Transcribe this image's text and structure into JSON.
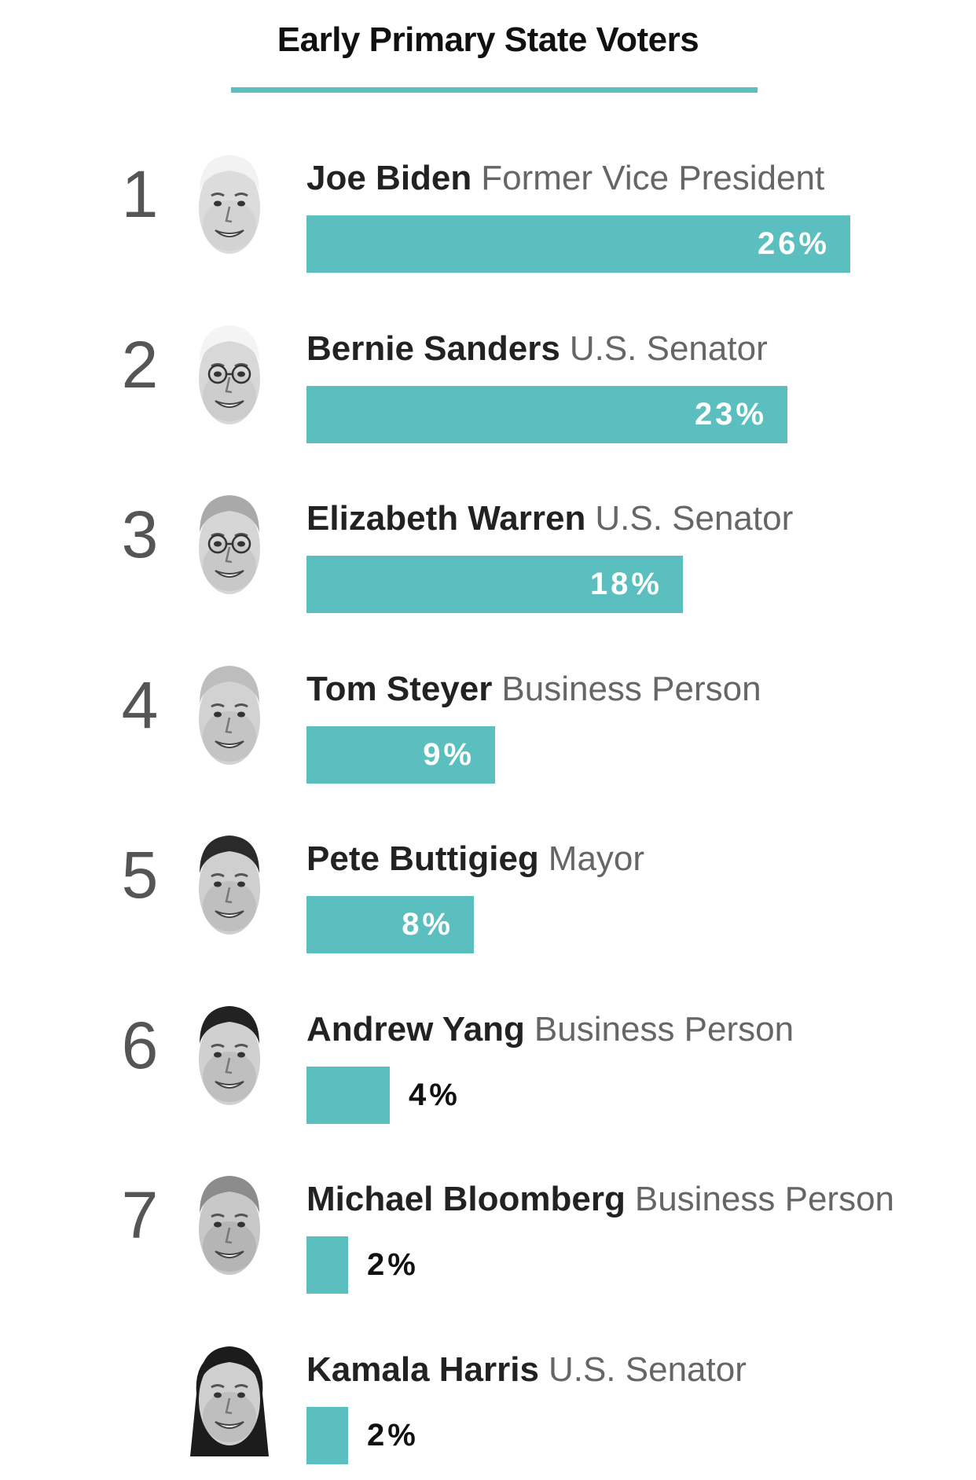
{
  "colors": {
    "accent": "#5bbfbf",
    "text_dark": "#222222",
    "text_muted": "#666666",
    "rank": "#555555"
  },
  "chart_data": {
    "type": "bar",
    "orientation": "horizontal",
    "title": "Early Primary State Voters",
    "xlim": [
      0,
      26
    ],
    "unit": "%",
    "rows": [
      {
        "rank": "1",
        "name": "Joe Biden",
        "role": "Former Vice President",
        "value": 26,
        "label": "26%",
        "avatar": "joe-biden-photo"
      },
      {
        "rank": "2",
        "name": "Bernie Sanders",
        "role": "U.S. Senator",
        "value": 23,
        "label": "23%",
        "avatar": "bernie-sanders-photo"
      },
      {
        "rank": "3",
        "name": "Elizabeth Warren",
        "role": "U.S. Senator",
        "value": 18,
        "label": "18%",
        "avatar": "elizabeth-warren-photo"
      },
      {
        "rank": "4",
        "name": "Tom Steyer",
        "role": "Business Person",
        "value": 9,
        "label": "9%",
        "avatar": "tom-steyer-photo"
      },
      {
        "rank": "5",
        "name": "Pete Buttigieg",
        "role": "Mayor",
        "value": 8,
        "label": "8%",
        "avatar": "pete-buttigieg-photo"
      },
      {
        "rank": "6",
        "name": "Andrew Yang",
        "role": "Business Person",
        "value": 4,
        "label": "4%",
        "avatar": "andrew-yang-photo"
      },
      {
        "rank": "7",
        "name": "Michael Bloomberg",
        "role": "Business Person",
        "value": 2,
        "label": "2%",
        "avatar": "michael-bloomberg-photo"
      },
      {
        "rank": "",
        "name": "Kamala Harris",
        "role": "U.S. Senator",
        "value": 2,
        "label": "2%",
        "avatar": "kamala-harris-photo"
      }
    ]
  }
}
